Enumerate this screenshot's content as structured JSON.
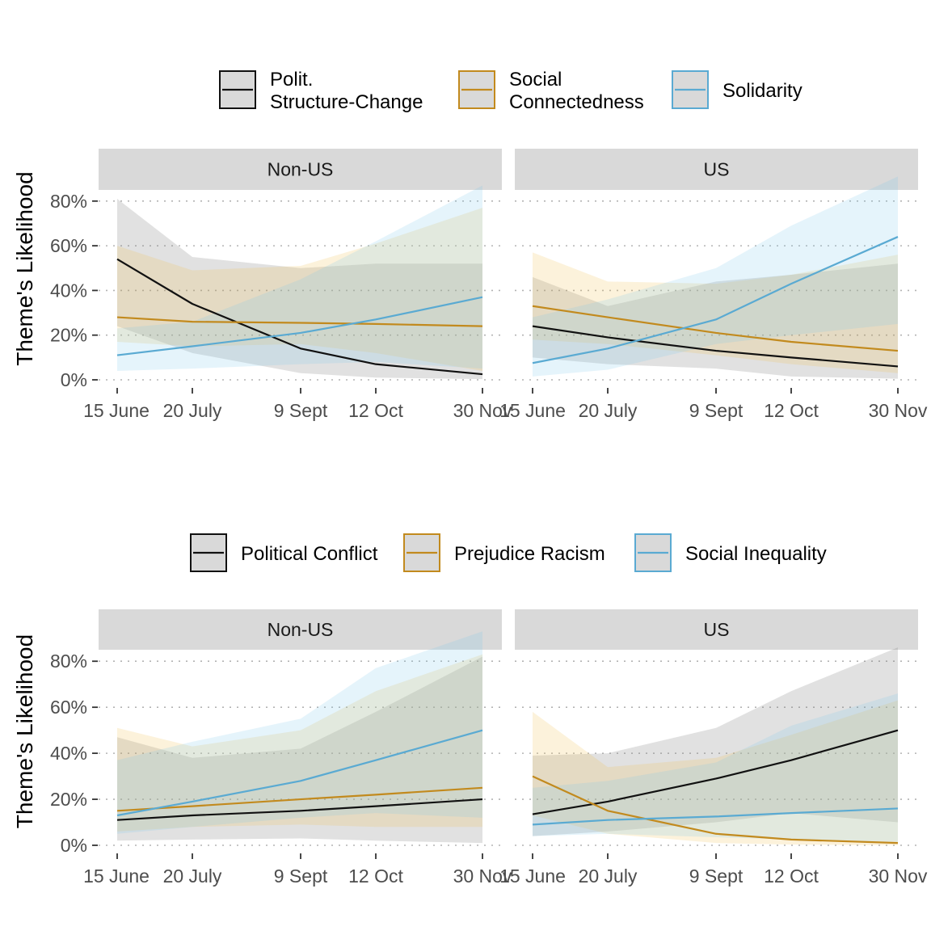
{
  "colors": {
    "black": "#111111",
    "orange": "#C28A1E",
    "blue": "#5AAAD2",
    "strip": "#D9D9D9",
    "grid": "#B3B3B3",
    "tick": "#4D4D4D"
  },
  "chart_data": [
    {
      "type": "line",
      "ylabel": "Theme's Likelihood",
      "ylim": [
        0,
        85
      ],
      "y_ticks": [
        "0%",
        "20%",
        "40%",
        "60%",
        "80%"
      ],
      "x_ticks": [
        "15 June",
        "20 July",
        "9 Sept",
        "12 Oct",
        "30 Nov"
      ],
      "legend_position": "top",
      "legend": [
        {
          "lines": [
            "Polit.",
            "Structure-Change"
          ],
          "color": "black"
        },
        {
          "lines": [
            "Social",
            "Connectedness"
          ],
          "color": "orange"
        },
        {
          "lines": [
            "Solidarity"
          ],
          "color": "blue"
        }
      ],
      "panels": [
        {
          "strip": "Non-US",
          "series": [
            {
              "color": "black",
              "values": [
                54,
                34,
                14,
                7,
                2.5
              ],
              "lower": [
                24,
                12,
                3,
                1,
                0.3
              ],
              "upper": [
                81,
                55,
                50,
                52,
                52
              ]
            },
            {
              "color": "orange",
              "values": [
                28,
                26,
                25.5,
                25,
                24
              ],
              "lower": [
                17,
                15,
                16,
                12,
                4
              ],
              "upper": [
                60,
                49,
                51,
                61,
                77
              ]
            },
            {
              "color": "blue",
              "values": [
                11,
                15,
                21,
                27,
                37
              ],
              "lower": [
                4,
                5,
                7,
                8,
                5
              ],
              "upper": [
                23,
                26,
                45,
                62,
                87
              ]
            }
          ]
        },
        {
          "strip": "US",
          "series": [
            {
              "color": "black",
              "values": [
                24,
                19,
                13,
                10,
                6
              ],
              "lower": [
                10,
                7,
                5,
                1.5,
                0.5
              ],
              "upper": [
                46,
                33,
                44,
                47,
                52
              ]
            },
            {
              "color": "orange",
              "values": [
                33,
                28,
                21,
                17,
                13
              ],
              "lower": [
                18,
                16,
                11,
                7,
                3
              ],
              "upper": [
                57,
                44,
                43,
                47,
                56
              ]
            },
            {
              "color": "blue",
              "values": [
                7.5,
                14,
                27,
                43,
                64
              ],
              "lower": [
                1.5,
                4.5,
                16,
                20,
                25
              ],
              "upper": [
                28,
                36,
                50,
                69,
                91
              ]
            }
          ]
        }
      ]
    },
    {
      "type": "line",
      "ylabel": "Theme's Likelihood",
      "ylim": [
        0,
        85
      ],
      "y_ticks": [
        "0%",
        "20%",
        "40%",
        "60%",
        "80%"
      ],
      "x_ticks": [
        "15 June",
        "20 July",
        "9 Sept",
        "12 Oct",
        "30 Nov"
      ],
      "legend_position": "top",
      "legend": [
        {
          "lines": [
            "Political Conflict"
          ],
          "color": "black"
        },
        {
          "lines": [
            "Prejudice Racism"
          ],
          "color": "orange"
        },
        {
          "lines": [
            "Social Inequality"
          ],
          "color": "blue"
        }
      ],
      "panels": [
        {
          "strip": "Non-US",
          "series": [
            {
              "color": "black",
              "values": [
                11,
                13,
                15,
                17,
                20
              ],
              "lower": [
                2,
                2.5,
                3,
                2,
                1
              ],
              "upper": [
                47,
                38,
                42,
                58,
                82
              ]
            },
            {
              "color": "orange",
              "values": [
                15,
                17,
                20,
                22,
                25
              ],
              "lower": [
                6,
                8,
                9,
                8,
                8
              ],
              "upper": [
                51,
                43,
                50,
                67,
                83
              ]
            },
            {
              "color": "blue",
              "values": [
                13,
                19,
                28,
                37,
                50
              ],
              "lower": [
                5,
                8,
                12,
                14,
                12
              ],
              "upper": [
                37,
                45,
                55,
                77,
                93
              ]
            }
          ]
        },
        {
          "strip": "US",
          "series": [
            {
              "color": "black",
              "values": [
                13.5,
                19,
                29,
                37,
                50
              ],
              "lower": [
                4,
                6,
                10,
                14,
                10
              ],
              "upper": [
                39,
                40,
                51,
                67,
                86
              ]
            },
            {
              "color": "orange",
              "values": [
                30,
                15,
                5,
                2.5,
                1
              ],
              "lower": [
                13,
                5,
                1,
                0.3,
                0
              ],
              "upper": [
                58,
                34,
                38,
                48,
                63
              ]
            },
            {
              "color": "blue",
              "values": [
                9,
                11,
                12.5,
                14,
                16
              ],
              "lower": [
                4,
                5,
                3.5,
                2.5,
                1.5
              ],
              "upper": [
                25,
                28,
                36,
                52,
                66
              ]
            }
          ]
        }
      ]
    }
  ]
}
